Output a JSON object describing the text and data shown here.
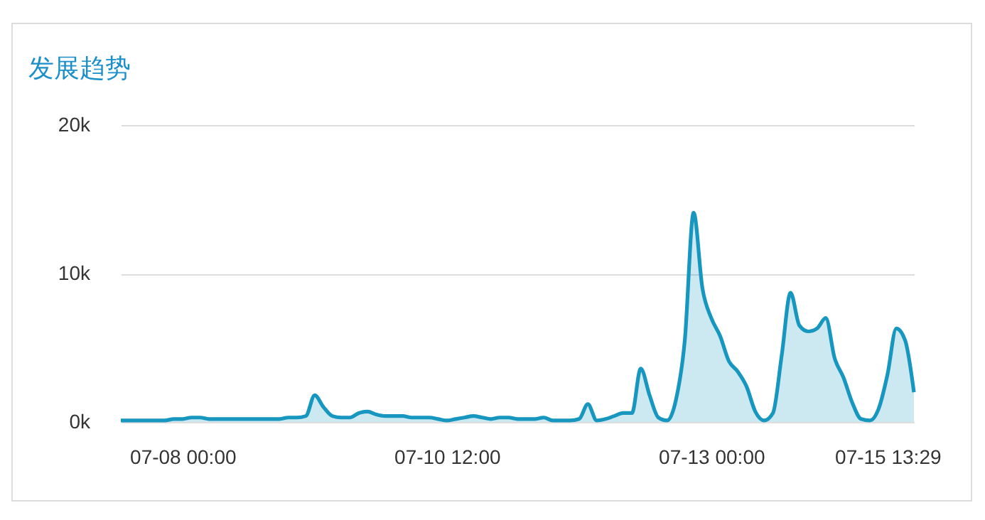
{
  "chart_data": {
    "type": "area",
    "title": "发展趋势",
    "color": "#1797bf",
    "grid": "y",
    "categories": [
      null,
      null,
      null,
      null,
      null,
      null,
      null,
      "07-08 00:00",
      null,
      null,
      null,
      null,
      null,
      null,
      null,
      null,
      null,
      null,
      null,
      null,
      null,
      null,
      null,
      null,
      null,
      null,
      null,
      null,
      null,
      null,
      null,
      null,
      null,
      null,
      null,
      null,
      null,
      "07-10 12:00",
      null,
      null,
      null,
      null,
      null,
      null,
      null,
      null,
      null,
      null,
      null,
      null,
      null,
      null,
      null,
      null,
      null,
      null,
      null,
      null,
      null,
      null,
      null,
      null,
      null,
      null,
      null,
      null,
      null,
      "07-13 00:00",
      null,
      null,
      null,
      null,
      null,
      null,
      null,
      null,
      null,
      null,
      null,
      null,
      null,
      null,
      null,
      null,
      null,
      null,
      null,
      "07-15 13:29",
      null,
      null,
      null
    ],
    "ylim": [
      0,
      20000
    ],
    "yticks": [
      {
        "value": 0,
        "label": "0k"
      },
      {
        "value": 10000,
        "label": "10k"
      },
      {
        "value": 20000,
        "label": "20k"
      }
    ],
    "values": [
      100,
      100,
      100,
      100,
      100,
      100,
      200,
      200,
      300,
      300,
      200,
      200,
      200,
      200,
      200,
      200,
      200,
      200,
      200,
      300,
      300,
      400,
      1800,
      1000,
      400,
      300,
      300,
      600,
      700,
      500,
      400,
      400,
      400,
      300,
      300,
      300,
      200,
      100,
      200,
      300,
      400,
      300,
      200,
      300,
      300,
      200,
      200,
      200,
      300,
      100,
      100,
      100,
      200,
      1200,
      100,
      200,
      400,
      600,
      600,
      3600,
      1800,
      300,
      100,
      1500,
      5500,
      14100,
      9000,
      7000,
      5800,
      4100,
      3400,
      2400,
      700,
      100,
      600,
      4500,
      8700,
      6500,
      6100,
      6300,
      7000,
      4300,
      3000,
      1300,
      200,
      100,
      900,
      3200,
      6300,
      5500,
      2000
    ]
  }
}
